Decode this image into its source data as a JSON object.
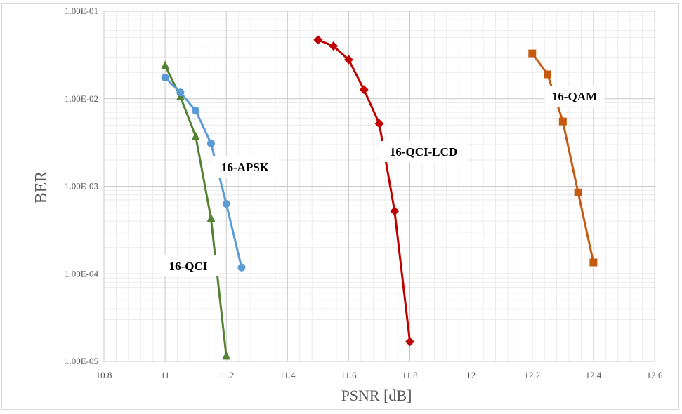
{
  "chart_data": {
    "type": "line",
    "title": "",
    "xlabel": "PSNR [dB]",
    "ylabel": "BER",
    "xlim": [
      10.8,
      12.6
    ],
    "ylim": [
      1e-05,
      0.1
    ],
    "yscale": "log",
    "grid": true,
    "x_ticks": [
      "10.8",
      "11",
      "11.2",
      "11.4",
      "11.6",
      "11.8",
      "12",
      "12.2",
      "12.4",
      "12.6"
    ],
    "y_ticks": [
      "1.00E-05",
      "1.00E-04",
      "1.00E-03",
      "1.00E-02",
      "1.00E-01"
    ],
    "series": [
      {
        "name": "16-QCI",
        "color": "#548235",
        "marker": "triangle",
        "x": [
          11.0,
          11.05,
          11.1,
          11.15,
          11.2
        ],
        "y": [
          0.024,
          0.0105,
          0.0037,
          0.00043,
          1.15e-05
        ]
      },
      {
        "name": "16-APSK",
        "color": "#5b9bd5",
        "marker": "circle",
        "x": [
          11.0,
          11.05,
          11.1,
          11.15,
          11.2,
          11.25
        ],
        "y": [
          0.0175,
          0.0118,
          0.0073,
          0.0031,
          0.00063,
          0.000118
        ]
      },
      {
        "name": "16-QCI-LCD",
        "color": "#c00000",
        "marker": "diamond",
        "x": [
          11.5,
          11.55,
          11.6,
          11.65,
          11.7,
          11.75,
          11.8
        ],
        "y": [
          0.047,
          0.04,
          0.028,
          0.0127,
          0.0052,
          0.00052,
          1.68e-05
        ]
      },
      {
        "name": "16-QAM",
        "color": "#c55a11",
        "marker": "square",
        "x": [
          12.2,
          12.25,
          12.3,
          12.35,
          12.4
        ],
        "y": [
          0.033,
          0.019,
          0.0055,
          0.00085,
          0.000135
        ]
      }
    ]
  }
}
